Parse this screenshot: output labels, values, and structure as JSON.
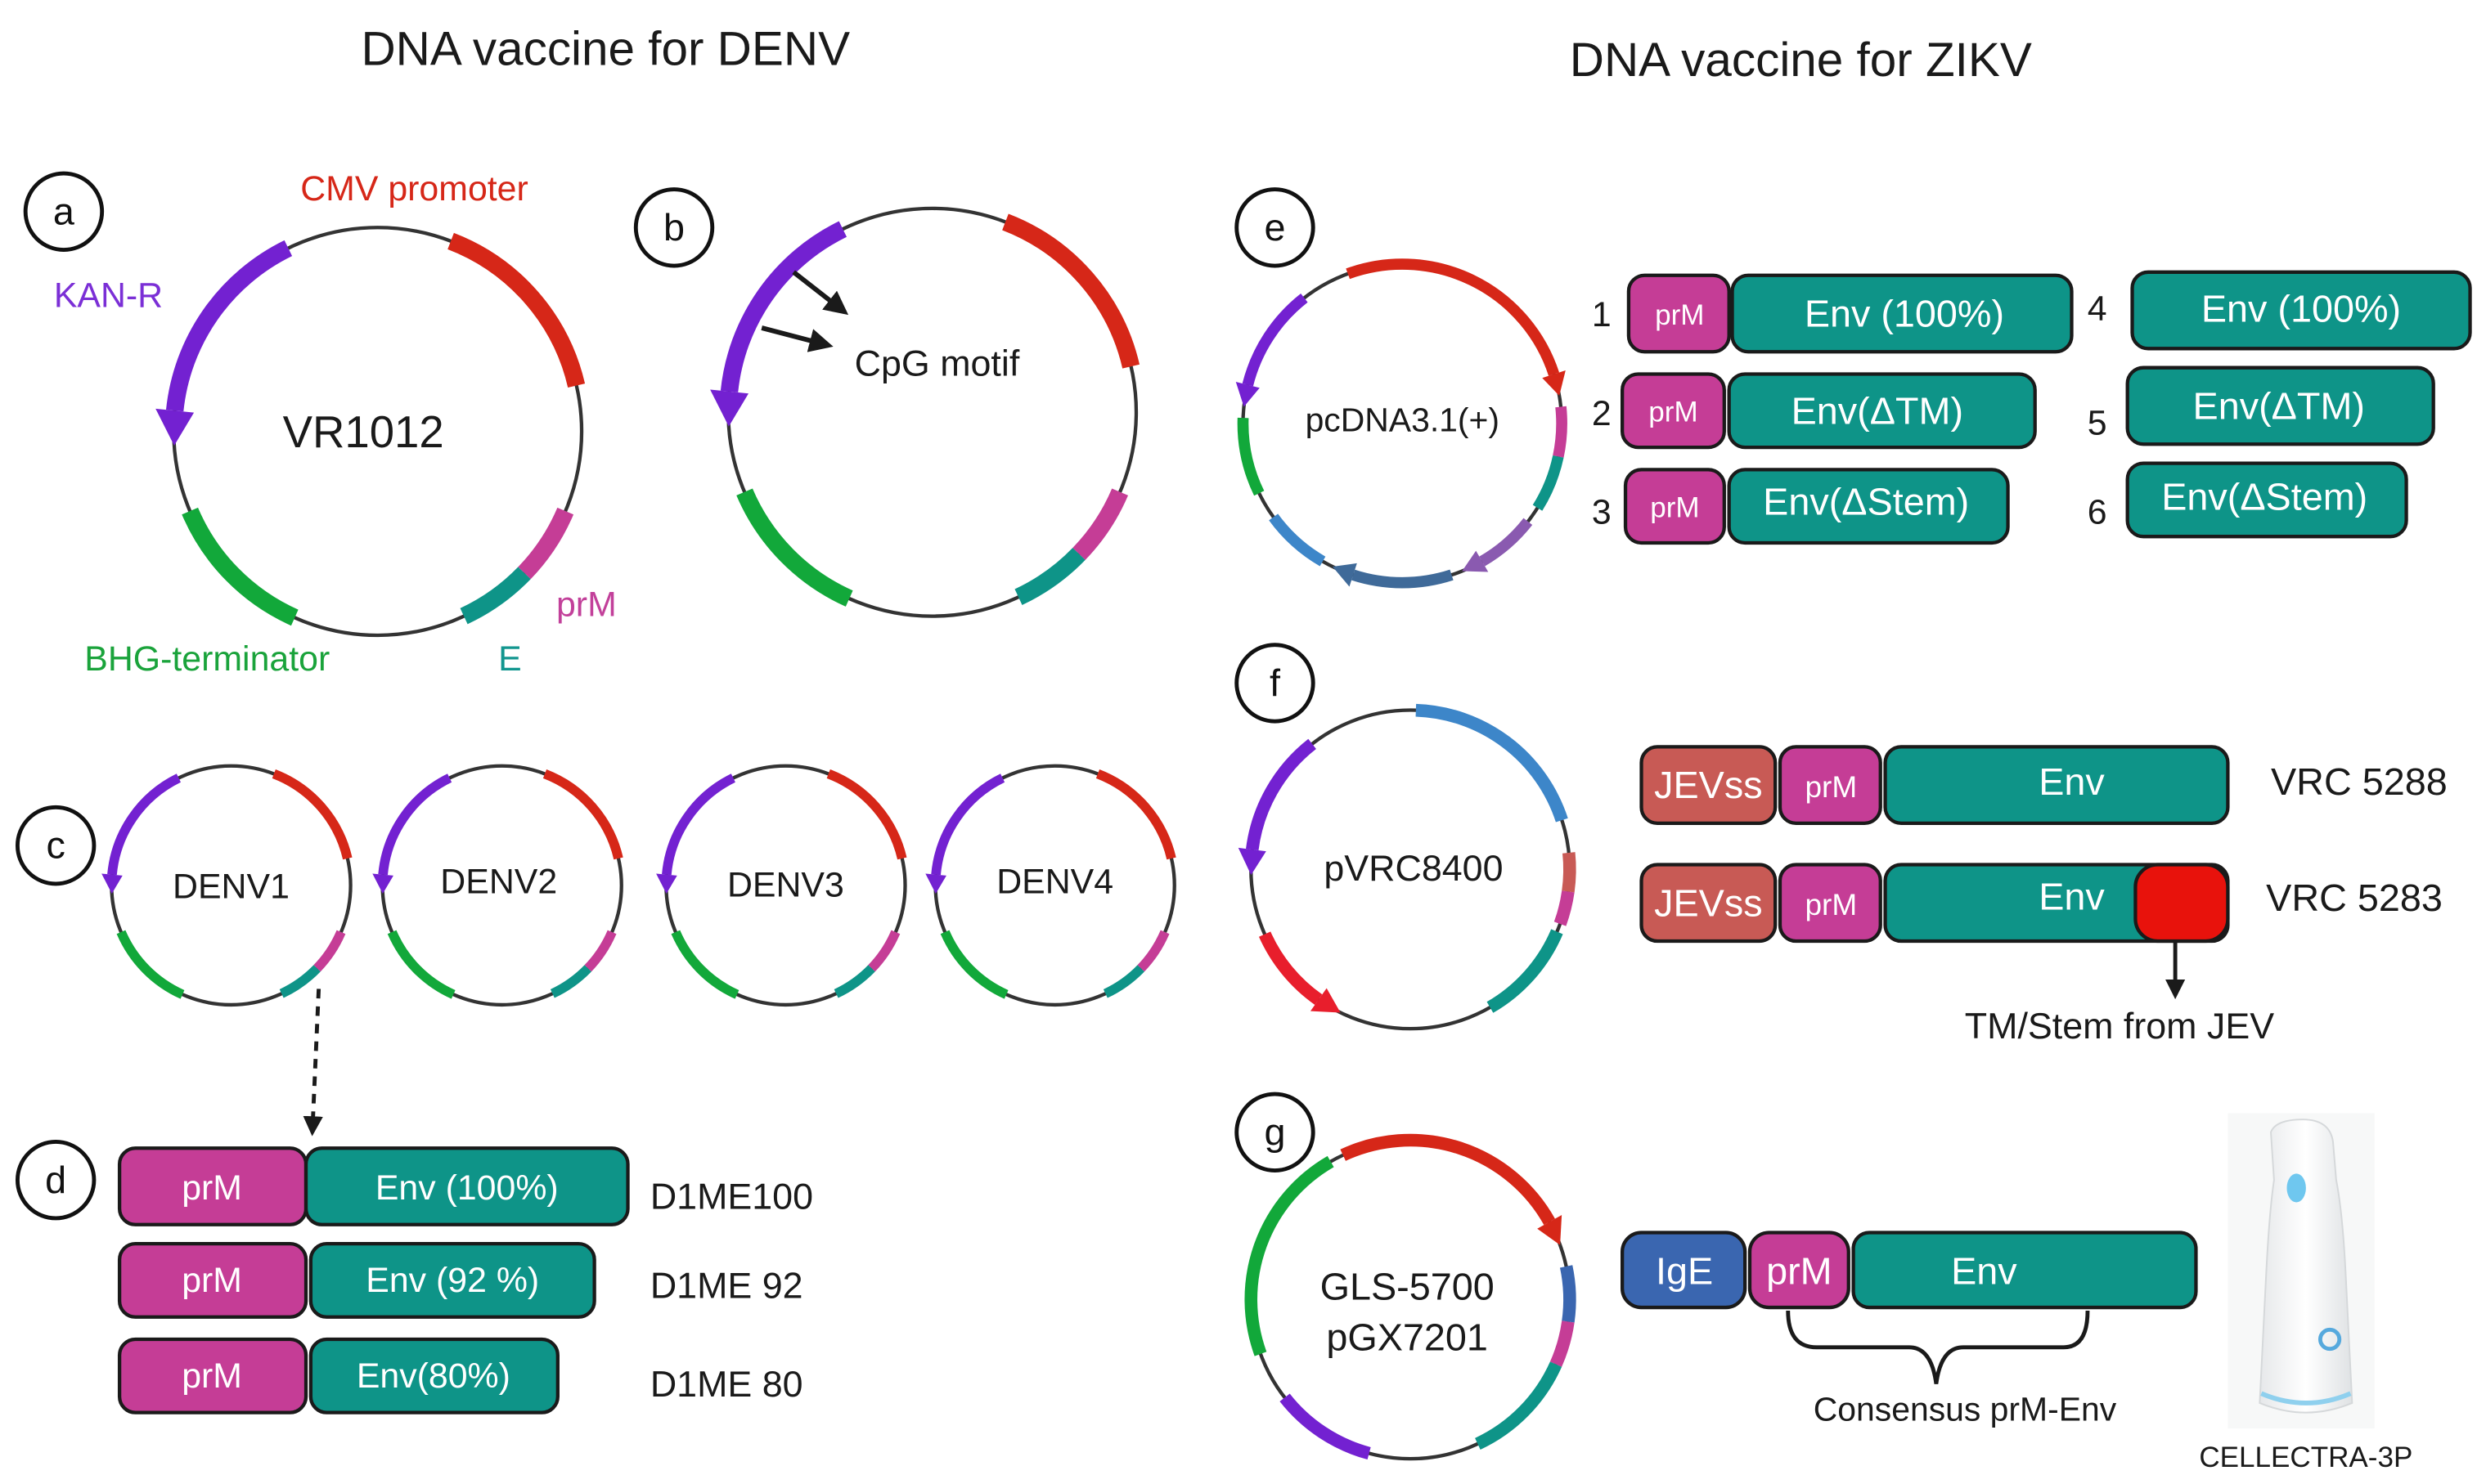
{
  "titles": {
    "denv": "DNA vaccine for DENV",
    "zikv": "DNA vaccine for  ZIKV"
  },
  "panels": [
    "a",
    "b",
    "c",
    "d",
    "e",
    "f",
    "g"
  ],
  "colors": {
    "teal": "#0e9488",
    "magenta": "#c53d96",
    "red": "#d62718",
    "purple": "#7321d1",
    "green": "#12a83a",
    "blue": "#3d86c9",
    "steel": "#3f6a99",
    "lavender": "#8a5ab0",
    "jevss": "#c85a55",
    "ige": "#3a66b0",
    "tm_red": "#e8120c"
  },
  "panel_a": {
    "plasmid": "VR1012",
    "cmv": "CMV promoter",
    "kan": "KAN-R",
    "prm": "prM",
    "bhg": "BHG-terminator",
    "e": "E"
  },
  "panel_b": {
    "cpg": "CpG motif"
  },
  "panel_c": {
    "plasmids": [
      "DENV1",
      "DENV2",
      "DENV3",
      "DENV4"
    ]
  },
  "panel_d": {
    "rows": [
      {
        "prm": "prM",
        "env": "Env (100%)",
        "name": "D1ME100"
      },
      {
        "prm": "prM",
        "env": "Env (92 %)",
        "name": "D1ME 92"
      },
      {
        "prm": "prM",
        "env": "Env(80%)",
        "name": "D1ME 80"
      }
    ]
  },
  "panel_e": {
    "plasmid": "pcDNA3.1(+)",
    "constructs": [
      {
        "num": "1",
        "prm": "prM",
        "env": "Env (100%)"
      },
      {
        "num": "2",
        "prm": "prM",
        "env": "Env(ΔTM)"
      },
      {
        "num": "3",
        "prm": "prM",
        "env": "Env(ΔStem)"
      },
      {
        "num": "4",
        "env": "Env (100%)"
      },
      {
        "num": "5",
        "env": "Env(ΔTM)"
      },
      {
        "num": "6",
        "env": "Env(ΔStem)"
      }
    ]
  },
  "panel_f": {
    "plasmid": "pVRC8400",
    "rows": [
      {
        "sig": "JEVss",
        "prm": "prM",
        "env": "Env",
        "name": "VRC 5288"
      },
      {
        "sig": "JEVss",
        "prm": "prM",
        "env": "Env",
        "name": "VRC 5283"
      }
    ],
    "note": "TM/Stem from JEV"
  },
  "panel_g": {
    "plasmid_line1": "GLS-5700",
    "plasmid_line2": "pGX7201",
    "sig": "IgE",
    "prm": "prM",
    "env": "Env",
    "brace_label": "Consensus prM-Env",
    "device": "CELLECTRA-3P"
  }
}
